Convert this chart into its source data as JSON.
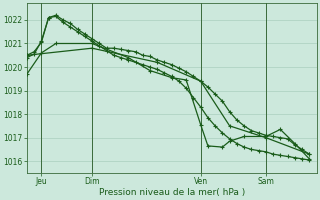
{
  "bg_color": "#cce8dc",
  "grid_color": "#aacfbe",
  "line_color": "#1a5c1a",
  "xlabel": "Pression niveau de la mer( hPa )",
  "ylim": [
    1015.5,
    1022.7
  ],
  "yticks": [
    1016,
    1017,
    1018,
    1019,
    1020,
    1021,
    1022
  ],
  "xlim": [
    0,
    40
  ],
  "xtick_labels": [
    "Jeu",
    "Dim",
    "Ven",
    "Sam"
  ],
  "xtick_positions": [
    2,
    9,
    24,
    33
  ],
  "vline_positions": [
    2,
    9,
    24,
    33
  ],
  "series1_x": [
    0,
    1,
    2,
    3,
    4,
    5,
    6,
    7,
    8,
    9,
    10,
    11,
    12,
    13,
    14,
    15,
    16,
    17,
    18,
    19,
    20,
    21,
    22,
    23,
    24,
    25,
    26,
    27,
    28,
    29,
    30,
    31,
    32,
    33,
    34,
    35,
    36,
    37,
    38,
    39
  ],
  "series1_y": [
    1020.5,
    1020.65,
    1021.05,
    1022.1,
    1022.2,
    1022.0,
    1021.85,
    1021.6,
    1021.4,
    1021.2,
    1021.0,
    1020.8,
    1020.8,
    1020.75,
    1020.7,
    1020.65,
    1020.5,
    1020.45,
    1020.3,
    1020.2,
    1020.1,
    1019.95,
    1019.8,
    1019.6,
    1019.4,
    1019.15,
    1018.85,
    1018.55,
    1018.1,
    1017.75,
    1017.5,
    1017.3,
    1017.2,
    1017.1,
    1017.05,
    1017.0,
    1016.95,
    1016.7,
    1016.5,
    1016.3
  ],
  "series2_x": [
    0,
    1,
    2,
    3,
    4,
    5,
    6,
    7,
    8,
    9,
    10,
    11,
    12,
    13,
    14,
    15,
    16,
    17,
    18,
    19,
    20,
    21,
    22,
    23,
    24,
    25,
    26,
    27,
    28,
    29,
    30,
    31,
    32,
    33,
    34,
    35,
    36,
    37,
    38,
    39
  ],
  "series2_y": [
    1020.4,
    1020.55,
    1021.1,
    1022.1,
    1022.15,
    1021.9,
    1021.7,
    1021.5,
    1021.3,
    1021.1,
    1020.9,
    1020.7,
    1020.5,
    1020.4,
    1020.3,
    1020.2,
    1020.1,
    1020.0,
    1019.9,
    1019.75,
    1019.6,
    1019.4,
    1019.1,
    1018.7,
    1018.3,
    1017.85,
    1017.5,
    1017.2,
    1016.95,
    1016.75,
    1016.6,
    1016.5,
    1016.45,
    1016.4,
    1016.3,
    1016.25,
    1016.2,
    1016.15,
    1016.1,
    1016.05
  ],
  "series3_x": [
    0,
    9,
    18,
    24,
    28,
    33,
    39
  ],
  "series3_y": [
    1020.5,
    1020.8,
    1020.2,
    1019.4,
    1017.5,
    1017.0,
    1016.3
  ],
  "series4_x": [
    0,
    2,
    4,
    9,
    14,
    17,
    20,
    22,
    24,
    25,
    27,
    28,
    30,
    33,
    35,
    37,
    39
  ],
  "series4_y": [
    1019.7,
    1020.6,
    1021.0,
    1021.0,
    1020.4,
    1019.85,
    1019.55,
    1019.45,
    1017.55,
    1016.65,
    1016.6,
    1016.85,
    1017.05,
    1017.05,
    1017.35,
    1016.75,
    1016.1
  ]
}
